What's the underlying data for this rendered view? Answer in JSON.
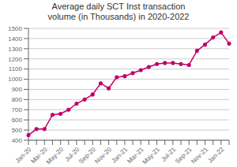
{
  "chart_data": {
    "type": "line",
    "title": "Average daily SCT Inst transaction\nvolume (in Thousands) in 2020-2022",
    "categories": [
      "Jan-20",
      null,
      "Mar-20",
      null,
      "May-20",
      null,
      "Jul-20",
      null,
      "Sep-20",
      null,
      "Nov-20",
      null,
      "Jan-21",
      null,
      "Mar-21",
      null,
      "May-21",
      null,
      "Jul-21",
      null,
      "Sep-21",
      null,
      "Nov-21",
      null,
      "Jan-22",
      null
    ],
    "values": [
      450,
      510,
      510,
      650,
      660,
      700,
      760,
      800,
      850,
      960,
      910,
      1020,
      1030,
      1060,
      1090,
      1120,
      1150,
      1160,
      1160,
      1150,
      1140,
      1280,
      1340,
      1410,
      1460,
      1350
    ],
    "color": "#c0006a",
    "marker": "circle",
    "ylim": [
      400,
      1500
    ],
    "yticks": [
      400,
      500,
      600,
      700,
      800,
      900,
      1000,
      1100,
      1200,
      1300,
      1400,
      1500
    ],
    "grid": true
  }
}
